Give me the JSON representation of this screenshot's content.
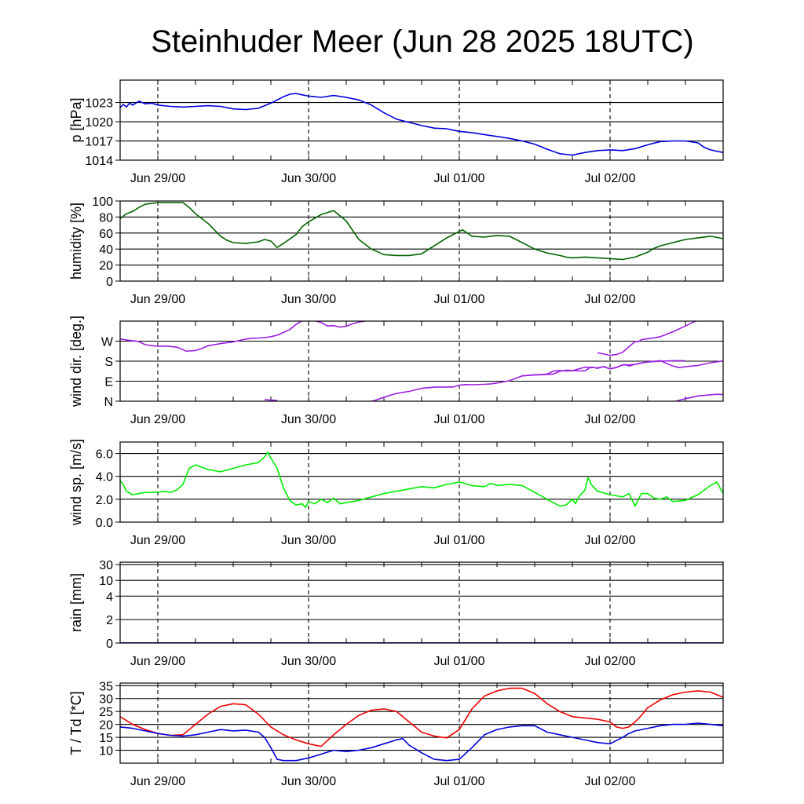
{
  "title": "Steinhuder Meer (Jun 28 2025 18UTC)",
  "date_labels": [
    "Jun 29/00",
    "Jun 30/00",
    "Jul 01/00",
    "Jul 02/00"
  ],
  "colors": {
    "pressure": "#0000dd",
    "humidity": "#006400",
    "wind_dir": "#9a1fe0",
    "wind_speed": "#00ee00",
    "rain": "#0000aa",
    "temperature": "#ee0000",
    "dewpoint": "#0000dd"
  },
  "chart_data": [
    {
      "type": "line",
      "ylabel": "p [hPa]",
      "ylim": [
        1014,
        1026.5
      ],
      "yticks": [
        1014,
        1017,
        1020,
        1023
      ],
      "ytick_labels": [
        "1014",
        "1017",
        "1020",
        "1023"
      ],
      "grid": true,
      "series": [
        {
          "color_key": "pressure",
          "x": [
            0,
            0.5,
            1,
            1.5,
            2,
            3,
            4,
            5,
            6,
            8,
            10,
            12,
            14,
            16,
            18,
            20,
            22,
            24,
            26,
            27,
            28,
            29,
            30,
            31,
            32,
            34,
            36,
            38,
            40,
            42,
            44,
            46,
            48,
            50,
            52,
            54,
            56,
            58,
            60,
            62,
            64,
            66,
            68,
            70,
            72,
            74,
            76,
            78,
            80,
            82,
            84,
            86,
            88,
            90,
            92,
            93,
            94,
            95,
            96
          ],
          "y": [
            1022.2,
            1022.7,
            1022.3,
            1022.9,
            1022.6,
            1023.2,
            1022.8,
            1022.9,
            1022.6,
            1022.4,
            1022.3,
            1022.4,
            1022.5,
            1022.4,
            1022.0,
            1021.9,
            1022.1,
            1022.9,
            1023.9,
            1024.3,
            1024.4,
            1024.2,
            1024.0,
            1023.9,
            1023.8,
            1024.1,
            1023.8,
            1023.4,
            1022.6,
            1021.4,
            1020.4,
            1019.9,
            1019.4,
            1019.0,
            1018.9,
            1018.5,
            1018.3,
            1018.0,
            1017.7,
            1017.4,
            1017.0,
            1016.5,
            1015.7,
            1015.0,
            1014.8,
            1015.2,
            1015.5,
            1015.6,
            1015.5,
            1015.8,
            1016.4,
            1016.9,
            1017.0,
            1017.0,
            1016.7,
            1016.0,
            1015.6,
            1015.4,
            1015.2
          ]
        }
      ]
    },
    {
      "type": "line",
      "ylabel": "humidity [%]",
      "ylim": [
        0,
        100
      ],
      "yticks": [
        0,
        20,
        40,
        60,
        80,
        100
      ],
      "ytick_labels": [
        "0",
        "20",
        "40",
        "60",
        "80",
        "100"
      ],
      "grid": true,
      "series": [
        {
          "color_key": "humidity",
          "x": [
            0,
            1,
            2,
            3,
            4,
            5,
            6,
            8,
            10,
            11,
            12,
            14,
            16,
            17,
            18,
            20,
            22,
            23,
            24,
            25,
            26,
            28,
            29,
            30,
            32,
            34,
            36,
            38,
            40,
            42,
            44,
            46,
            48,
            50,
            52,
            54,
            54.5,
            56,
            58,
            60,
            62,
            64,
            66,
            68,
            70,
            71,
            72,
            74,
            76,
            78,
            80,
            82,
            84,
            85,
            86,
            88,
            90,
            92,
            94,
            96
          ],
          "y": [
            78,
            84,
            87,
            92,
            96,
            97,
            98,
            98,
            98,
            92,
            84,
            72,
            56,
            51,
            48,
            47,
            49,
            52,
            50,
            42,
            47,
            58,
            68,
            74,
            83,
            88,
            75,
            52,
            40,
            33,
            32,
            32,
            34,
            44,
            54,
            62,
            64,
            56,
            55,
            57,
            56,
            48,
            40,
            35,
            32,
            30,
            29,
            30,
            29,
            28,
            27,
            30,
            36,
            41,
            44,
            48,
            52,
            54,
            56,
            53
          ]
        }
      ]
    },
    {
      "type": "line",
      "ylabel": "wind dir. [deg.]",
      "ylim": [
        0,
        360
      ],
      "yticks": [
        0,
        90,
        180,
        270
      ],
      "ytick_labels": [
        "N",
        "E",
        "S",
        "W"
      ],
      "grid": true,
      "series": [
        {
          "color_key": "wind_dir",
          "segments": [
            {
              "x": [
                0,
                1,
                2,
                3,
                4,
                5,
                6,
                7,
                8,
                9,
                9.5,
                10,
                10.5,
                11,
                12,
                13,
                14,
                16,
                18,
                20,
                21,
                22,
                23,
                24,
                25,
                26,
                27,
                28,
                29,
                30,
                31
              ],
              "y": [
                280,
                275,
                272,
                268,
                254,
                250,
                247,
                248,
                246,
                243,
                238,
                232,
                225,
                226,
                228,
                237,
                249,
                259,
                267,
                279,
                283,
                284,
                286,
                290,
                297,
                309,
                322,
                345,
                362,
                365,
                362
              ]
            },
            {
              "x": [
                23,
                24,
                25
              ],
              "y": [
                7,
                5,
                4
              ]
            },
            {
              "x": [
                31,
                32,
                33,
                34,
                35,
                36,
                37,
                38,
                39,
                40
              ],
              "y": [
                362,
                354,
                338,
                340,
                333,
                337,
                348,
                356,
                360,
                365
              ]
            },
            {
              "x": [
                40,
                40.5,
                41,
                42,
                43,
                44,
                46,
                48,
                50,
                52,
                53,
                54,
                55,
                56,
                58,
                59,
                60,
                62,
                64,
                66,
                67,
                68,
                69,
                70,
                71,
                72,
                73,
                74,
                75,
                76,
                77,
                78,
                79,
                80,
                80.5,
                81,
                82,
                84,
                86,
                88,
                89,
                90,
                92,
                94,
                96
              ],
              "y": [
                0,
                3,
                8,
                17,
                27,
                35,
                44,
                58,
                63,
                64,
                64,
                72,
                75,
                74,
                76,
                78,
                82,
                92,
                114,
                118,
                119,
                120,
                122,
                135,
                139,
                138,
                136,
                137,
                154,
                148,
                156,
                145,
                152,
                163,
                165,
                158,
                166,
                177,
                182,
                158,
                151,
                155,
                161,
                173,
                181
              ]
            },
            {
              "x": [
                64,
                66,
                67,
                68,
                69,
                70,
                71,
                72,
                74,
                76,
                77,
                78,
                79,
                80,
                81,
                82,
                83,
                84,
                86,
                88,
                90
              ],
              "y": [
                114,
                119,
                120,
                122,
                136,
                138,
                136,
                137,
                153,
                150,
                155,
                146,
                151,
                163,
                163,
                166,
                172,
                176,
                180,
                182,
                182
              ]
            },
            {
              "x": [
                76,
                77,
                78,
                79,
                80
              ],
              "y": [
                218,
                212,
                206,
                210,
                220
              ]
            },
            {
              "x": [
                80,
                81,
                82,
                82.5,
                83,
                84,
                85,
                86,
                87,
                88,
                89,
                90,
                91,
                92
              ],
              "y": [
                220,
                245,
                269,
                268,
                277,
                281,
                285,
                290,
                301,
                312,
                325,
                338,
                352,
                365
              ]
            },
            {
              "x": [
                88,
                89,
                90,
                91,
                92,
                93,
                94,
                95,
                96
              ],
              "y": [
                -3,
                4,
                12,
                17,
                24,
                26,
                29,
                31,
                30
              ]
            }
          ]
        }
      ]
    },
    {
      "type": "line",
      "ylabel": "wind sp. [m/s]",
      "ylim": [
        0,
        7
      ],
      "yticks": [
        0,
        2,
        4,
        6
      ],
      "ytick_labels": [
        "0.0",
        "2.0",
        "4.0",
        "6.0"
      ],
      "grid": true,
      "series": [
        {
          "color_key": "wind_speed",
          "x": [
            0,
            0.5,
            1,
            2,
            3,
            4,
            6,
            7,
            8,
            9,
            10,
            11,
            12,
            13,
            14,
            16,
            18,
            20,
            22,
            23,
            23.5,
            24,
            25,
            26,
            27,
            28,
            29,
            29.5,
            30,
            31,
            32,
            33,
            34,
            35,
            36,
            38,
            40,
            42,
            44,
            46,
            48,
            50,
            52,
            54,
            56,
            58,
            59,
            60,
            62,
            64,
            66,
            68,
            70,
            71,
            72,
            72.5,
            73,
            74,
            74.5,
            75,
            76,
            78,
            80,
            81,
            82,
            82.5,
            83,
            84,
            85,
            86,
            87,
            88,
            90,
            92,
            94,
            95,
            96
          ],
          "y": [
            3.6,
            3.3,
            2.7,
            2.4,
            2.5,
            2.6,
            2.6,
            2.7,
            2.6,
            2.8,
            3.3,
            4.7,
            5.0,
            4.8,
            4.6,
            4.4,
            4.7,
            5.0,
            5.2,
            5.7,
            6.1,
            5.6,
            4.7,
            3.0,
            1.9,
            1.5,
            1.6,
            1.3,
            1.8,
            1.6,
            2.0,
            1.7,
            2.1,
            1.6,
            1.7,
            1.9,
            2.2,
            2.5,
            2.7,
            2.9,
            3.1,
            3.0,
            3.3,
            3.5,
            3.2,
            3.1,
            3.4,
            3.2,
            3.3,
            3.2,
            2.6,
            2.0,
            1.4,
            1.5,
            2.0,
            1.6,
            2.2,
            2.8,
            3.9,
            3.3,
            2.7,
            2.4,
            2.2,
            2.5,
            1.4,
            2.0,
            2.5,
            2.5,
            2.1,
            2.0,
            2.2,
            1.8,
            1.9,
            2.4,
            3.2,
            3.5,
            2.5
          ]
        }
      ]
    },
    {
      "type": "line",
      "ylabel": "rain [mm]",
      "ylim": [
        0,
        32
      ],
      "yticks": [
        0,
        2,
        4,
        10,
        30
      ],
      "ytick_labels": [
        "0",
        "2",
        "4",
        "10",
        "30"
      ],
      "grid": true,
      "series": [
        {
          "color_key": "rain",
          "x": [
            0,
            96
          ],
          "y": [
            0,
            0
          ]
        }
      ]
    },
    {
      "type": "line",
      "ylabel": "T / Td [*C]",
      "ylim": [
        5,
        36
      ],
      "yticks": [
        10,
        15,
        20,
        25,
        30,
        35
      ],
      "ytick_labels": [
        "10",
        "15",
        "20",
        "25",
        "30",
        "35"
      ],
      "grid": true,
      "series": [
        {
          "color_key": "temperature",
          "x": [
            0,
            1,
            2,
            4,
            6,
            8,
            10,
            12,
            14,
            16,
            18,
            20,
            22,
            24,
            26,
            28,
            30,
            32,
            34,
            36,
            38,
            40,
            42,
            44,
            46,
            48,
            50,
            52,
            54,
            56,
            58,
            60,
            62,
            64,
            66,
            68,
            70,
            72,
            74,
            76,
            78,
            79,
            80,
            81,
            82,
            83,
            84,
            86,
            88,
            90,
            92,
            94,
            96
          ],
          "y": [
            23.0,
            21.5,
            20.0,
            18.0,
            16.5,
            15.8,
            16.0,
            20.0,
            24.0,
            27.0,
            28.0,
            27.6,
            24.0,
            19.0,
            16.0,
            14.0,
            12.5,
            11.5,
            16.0,
            20.0,
            23.5,
            25.5,
            26.0,
            25.0,
            21.0,
            17.0,
            15.5,
            14.8,
            18.0,
            26.0,
            31.0,
            33.0,
            34.0,
            34.0,
            32.0,
            28.0,
            25.0,
            23.0,
            22.5,
            22.0,
            21.0,
            19.0,
            18.5,
            19.0,
            21.0,
            23.5,
            26.5,
            29.5,
            31.5,
            32.5,
            33.0,
            32.5,
            30.5
          ]
        },
        {
          "color_key": "dewpoint",
          "x": [
            0,
            2,
            4,
            6,
            8,
            10,
            12,
            14,
            16,
            18,
            20,
            22,
            23,
            24,
            25,
            26,
            27,
            28,
            30,
            32,
            34,
            36,
            38,
            40,
            42,
            44,
            45,
            46,
            48,
            50,
            52,
            54,
            56,
            58,
            60,
            62,
            64,
            66,
            68,
            70,
            72,
            74,
            76,
            78,
            80,
            81,
            82,
            84,
            86,
            88,
            90,
            92,
            94,
            96
          ],
          "y": [
            19.0,
            18.5,
            17.5,
            16.5,
            15.8,
            15.5,
            16.0,
            17.0,
            18.0,
            17.5,
            17.8,
            17.0,
            15.0,
            11.0,
            6.5,
            6.0,
            6.0,
            6.0,
            7.0,
            8.5,
            10.0,
            9.5,
            10.0,
            11.0,
            12.5,
            14.0,
            14.5,
            12.0,
            9.0,
            6.5,
            6.0,
            6.5,
            11.0,
            16.0,
            18.0,
            19.0,
            19.5,
            19.5,
            17.0,
            16.0,
            15.0,
            14.0,
            13.0,
            12.5,
            15.0,
            16.5,
            17.5,
            18.5,
            19.5,
            20.0,
            20.0,
            20.5,
            20.0,
            19.5
          ]
        }
      ]
    }
  ]
}
